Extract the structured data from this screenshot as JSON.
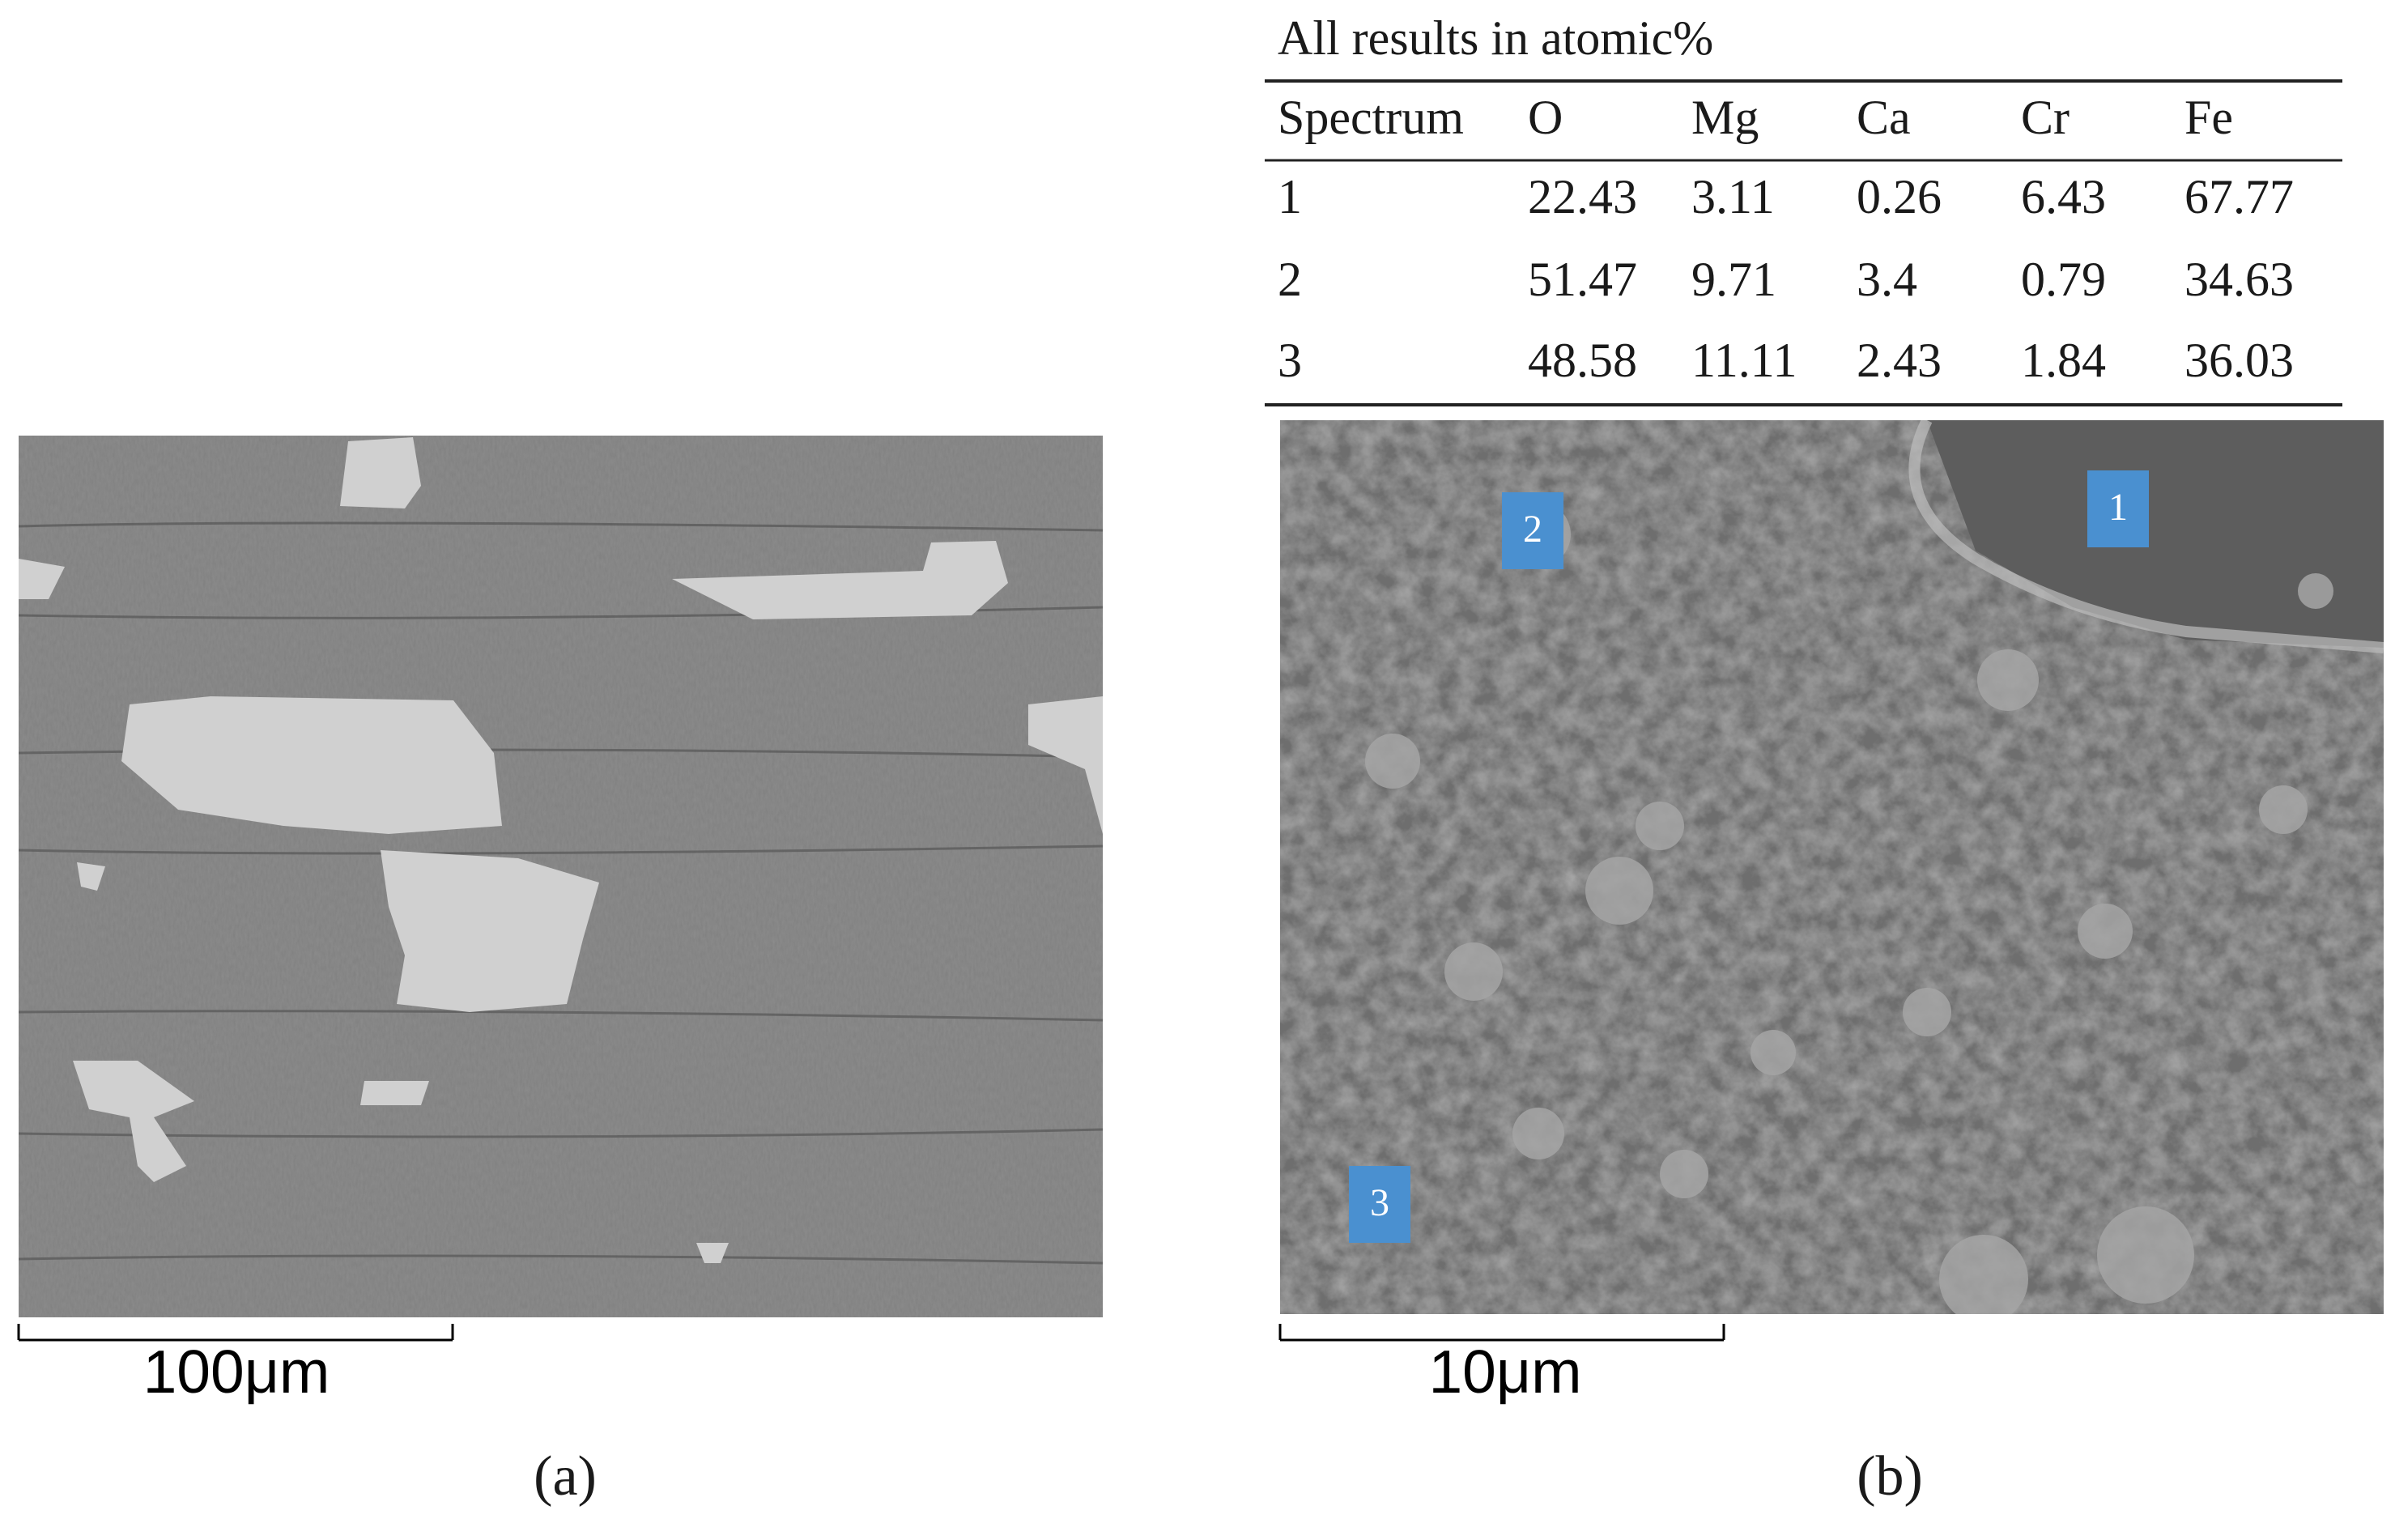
{
  "panel_a": {
    "scale_bar": "100μm",
    "label": "(a)"
  },
  "panel_b": {
    "table": {
      "caption": "All results in atomic%",
      "header": [
        "Spectrum",
        "O",
        "Mg",
        "Ca",
        "Cr",
        "Fe"
      ],
      "rows": [
        [
          "1",
          "22.43",
          "3.11",
          "0.26",
          "6.43",
          "67.77"
        ],
        [
          "2",
          "51.47",
          "9.71",
          "3.4",
          "0.79",
          "34.63"
        ],
        [
          "3",
          "48.58",
          "11.11",
          "2.43",
          "1.84",
          "36.03"
        ]
      ]
    },
    "markers": [
      "1",
      "2",
      "3"
    ],
    "scale_bar": "10μm",
    "label": "(b)"
  }
}
